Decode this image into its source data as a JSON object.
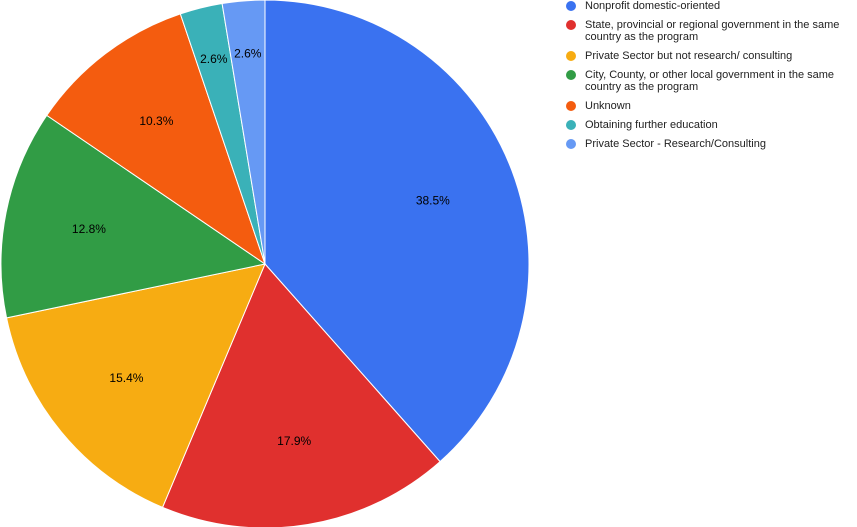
{
  "chart_data": {
    "type": "pie",
    "slices": [
      {
        "label": "Nonprofit domestic-oriented",
        "value": 38.5,
        "display": "38.5%",
        "color": "#3a72f0"
      },
      {
        "label": "State, provincial or regional government in the same country as the program",
        "value": 17.9,
        "display": "17.9%",
        "color": "#e0302e"
      },
      {
        "label": "Private Sector but not research/ consulting",
        "value": 15.4,
        "display": "15.4%",
        "color": "#f7ac12"
      },
      {
        "label": "City, County, or other local government in the same country as the program",
        "value": 12.8,
        "display": "12.8%",
        "color": "#319c45"
      },
      {
        "label": "Unknown",
        "value": 10.3,
        "display": "10.3%",
        "color": "#f45c0f"
      },
      {
        "label": "Obtaining further education",
        "value": 2.6,
        "display": "2.6%",
        "color": "#3ab1b8"
      },
      {
        "label": "Private Sector - Research/Consulting",
        "value": 2.6,
        "display": "2.6%",
        "color": "#6699f4"
      }
    ],
    "legend_position": "right"
  }
}
